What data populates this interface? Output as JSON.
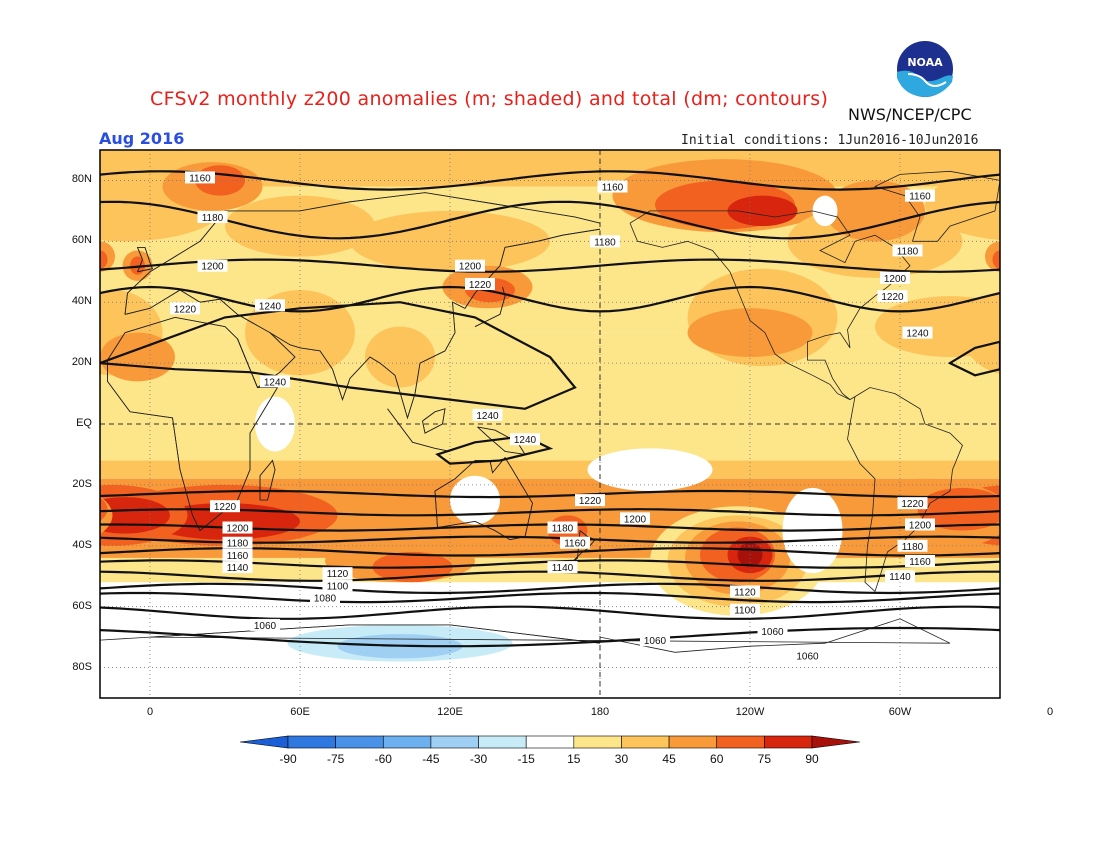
{
  "title": "CFSv2 monthly z200 anomalies (m; shaded) and total (dm; contours)",
  "agency": "NWS/NCEP/CPC",
  "period": "Aug 2016",
  "initial_conditions": "Initial conditions: 1Jun2016-10Jun2016",
  "logo_text": "NOAA",
  "lat_labels": [
    "80N",
    "60N",
    "40N",
    "20N",
    "EQ",
    "20S",
    "40S",
    "60S",
    "80S"
  ],
  "lon_labels": [
    "0",
    "60E",
    "120E",
    "180",
    "120W",
    "60W",
    "0"
  ],
  "colorbar": {
    "ticks": [
      "-90",
      "-75",
      "-60",
      "-45",
      "-30",
      "-15",
      "15",
      "30",
      "45",
      "60",
      "75",
      "90"
    ],
    "colors": [
      "#1a5fd6",
      "#2f78e0",
      "#4a92e8",
      "#6db0ef",
      "#9fd0f4",
      "#c8ecf7",
      "#ffffff",
      "#fde58a",
      "#fcc45a",
      "#f99a3a",
      "#f2611f",
      "#d8260e",
      "#a8110a"
    ]
  },
  "contour_labels": [
    {
      "text": "1160",
      "lon": 20,
      "lat": 81
    },
    {
      "text": "1160",
      "lon": 185,
      "lat": 78
    },
    {
      "text": "1160",
      "lon": -52,
      "lat": 75
    },
    {
      "text": "1180",
      "lon": 25,
      "lat": 68
    },
    {
      "text": "1180",
      "lon": 182,
      "lat": 60
    },
    {
      "text": "1180",
      "lon": -57,
      "lat": 57
    },
    {
      "text": "1200",
      "lon": 25,
      "lat": 52
    },
    {
      "text": "1200",
      "lon": 128,
      "lat": 52
    },
    {
      "text": "1200",
      "lon": -62,
      "lat": 48
    },
    {
      "text": "1220",
      "lon": 14,
      "lat": 38
    },
    {
      "text": "1240",
      "lon": 48,
      "lat": 39
    },
    {
      "text": "1220",
      "lon": 132,
      "lat": 46
    },
    {
      "text": "1220",
      "lon": -63,
      "lat": 42
    },
    {
      "text": "1240",
      "lon": -53,
      "lat": 30
    },
    {
      "text": "1240",
      "lon": 50,
      "lat": 14
    },
    {
      "text": "1240",
      "lon": 135,
      "lat": 3
    },
    {
      "text": "1240",
      "lon": 150,
      "lat": -5
    },
    {
      "text": "1220",
      "lon": 30,
      "lat": -27
    },
    {
      "text": "1200",
      "lon": 35,
      "lat": -34
    },
    {
      "text": "1180",
      "lon": 35,
      "lat": -39
    },
    {
      "text": "1160",
      "lon": 35,
      "lat": -43
    },
    {
      "text": "1140",
      "lon": 35,
      "lat": -47
    },
    {
      "text": "1120",
      "lon": 75,
      "lat": -49
    },
    {
      "text": "1100",
      "lon": 75,
      "lat": -53
    },
    {
      "text": "1080",
      "lon": 70,
      "lat": -57
    },
    {
      "text": "1060",
      "lon": 46,
      "lat": -66
    },
    {
      "text": "1220",
      "lon": 176,
      "lat": -25
    },
    {
      "text": "1180",
      "lon": 165,
      "lat": -34
    },
    {
      "text": "1160",
      "lon": 170,
      "lat": -39
    },
    {
      "text": "1140",
      "lon": 165,
      "lat": -47
    },
    {
      "text": "1200",
      "lon": 194,
      "lat": -31
    },
    {
      "text": "1120",
      "lon": -122,
      "lat": -55
    },
    {
      "text": "1100",
      "lon": -122,
      "lat": -61
    },
    {
      "text": "1060",
      "lon": -158,
      "lat": -71
    },
    {
      "text": "1060",
      "lon": -111,
      "lat": -68
    },
    {
      "text": "1060",
      "lon": -97,
      "lat": -76
    },
    {
      "text": "1220",
      "lon": -55,
      "lat": -26
    },
    {
      "text": "1200",
      "lon": -52,
      "lat": -33
    },
    {
      "text": "1180",
      "lon": -55,
      "lat": -40
    },
    {
      "text": "1160",
      "lon": -52,
      "lat": -45
    },
    {
      "text": "1140",
      "lon": -60,
      "lat": -50
    }
  ]
}
